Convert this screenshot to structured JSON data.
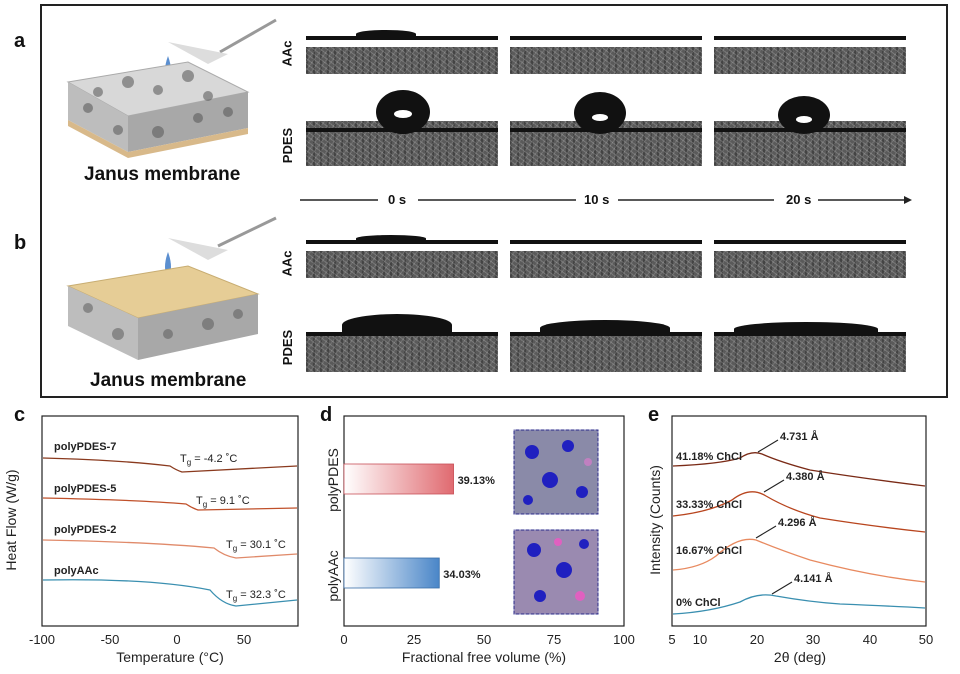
{
  "panel_labels": {
    "a": "a",
    "b": "b",
    "c": "c",
    "d": "d",
    "e": "e"
  },
  "membrane_caption_a": "Janus membrane",
  "membrane_caption_b": "Janus membrane",
  "row_labels": {
    "a_top": "AAc",
    "a_bottom": "PDES",
    "b_top": "AAc",
    "b_bottom": "PDES"
  },
  "timeline": {
    "t0": "0 s",
    "t1": "10 s",
    "t2": "20 s"
  },
  "colors": {
    "pdes_curve": "#8a3a1e",
    "pdes5_curve": "#c0502a",
    "pdes2_curve": "#e08a6a",
    "aac_curve": "#3a8fb0",
    "bar_pdes": "#e06a70",
    "bar_aac": "#4a86c8"
  },
  "chart_c": {
    "type": "line",
    "xlabel": "Temperature (°C)",
    "ylabel": "Heat Flow (W/g)",
    "xlim": [
      -100,
      90
    ],
    "xticks": [
      "-100",
      "-50",
      "0",
      "50"
    ],
    "series": [
      {
        "name": "polyPDES-7",
        "tg": "T",
        "tg_sub": "g",
        "tg_val": " = -4.2 ˚C"
      },
      {
        "name": "polyPDES-5",
        "tg": "T",
        "tg_sub": "g",
        "tg_val": " = 9.1 ˚C"
      },
      {
        "name": "polyPDES-2",
        "tg": "T",
        "tg_sub": "g",
        "tg_val": " = 30.1 ˚C"
      },
      {
        "name": "polyAAc",
        "tg": "T",
        "tg_sub": "g",
        "tg_val": " = 32.3 ˚C"
      }
    ]
  },
  "chart_d": {
    "type": "bar",
    "xlabel": "Fractional free volume (%)",
    "xticks": [
      "0",
      "25",
      "50",
      "75",
      "100"
    ],
    "xlim": [
      0,
      100
    ],
    "categories": [
      "polyPDES",
      "polyAAc"
    ],
    "values": [
      39.13,
      34.03
    ],
    "value_labels": [
      "39.13%",
      "34.03%"
    ]
  },
  "chart_e": {
    "type": "line",
    "xlabel": "2θ (deg)",
    "ylabel": "Intensity (Counts)",
    "xlim": [
      5,
      50
    ],
    "xticks": [
      "5",
      "10",
      "20",
      "30",
      "40",
      "50"
    ],
    "series": [
      {
        "name": "41.18% ChCl",
        "peak": "4.731 Å"
      },
      {
        "name": "33.33% ChCl",
        "peak": "4.380 Å"
      },
      {
        "name": "16.67% ChCl",
        "peak": "4.296 Å"
      },
      {
        "name": "0% ChCl",
        "peak": "4.141 Å"
      }
    ]
  }
}
